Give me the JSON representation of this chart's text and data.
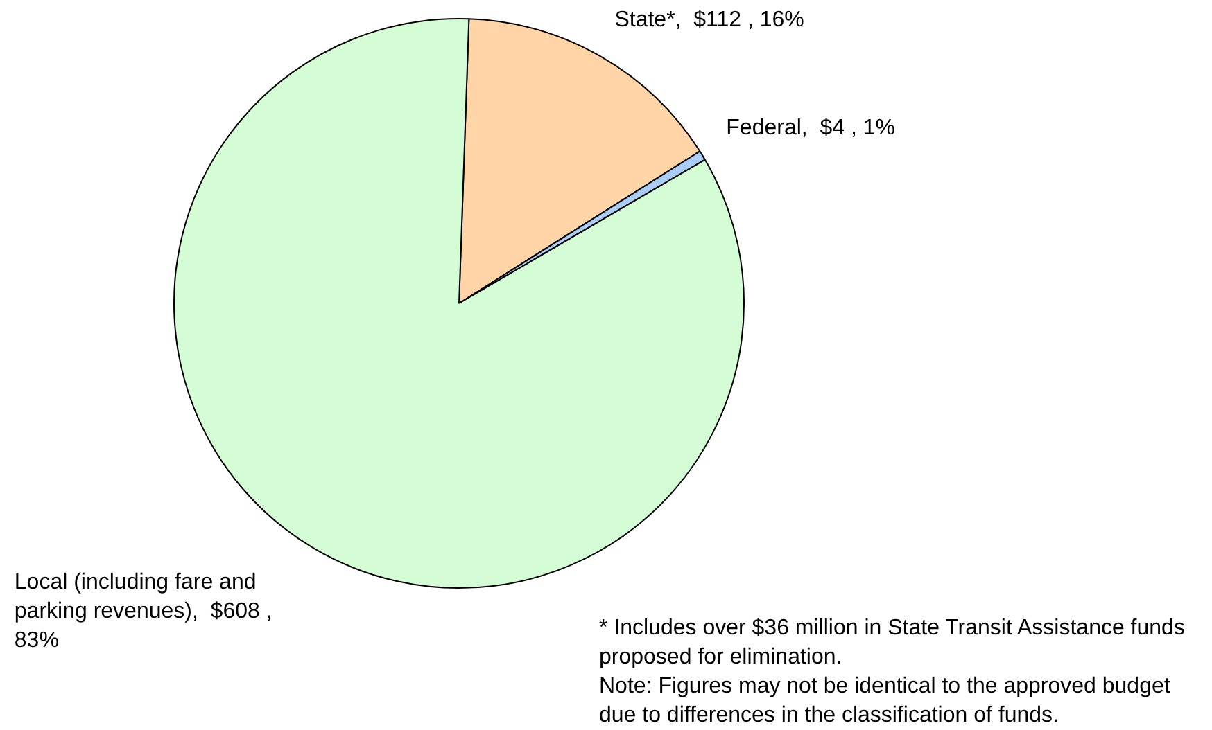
{
  "chart_data": {
    "type": "pie",
    "categories": [
      "State*",
      "Federal",
      "Local (including fare and parking revenues)"
    ],
    "values": [
      112,
      4,
      608
    ],
    "value_labels": [
      "$112 , 16%",
      "$4 , 1%",
      "$608 , 83%"
    ],
    "colors": [
      "#ffd5a8",
      "#a9cdf5",
      "#d5fdd5"
    ],
    "legend": false,
    "annotations": [
      "* Includes over $36 million in State Transit Assistance funds proposed for elimination.",
      "Note: Figures may not be identical to the approved budget due to differences in the classification of funds."
    ]
  }
}
